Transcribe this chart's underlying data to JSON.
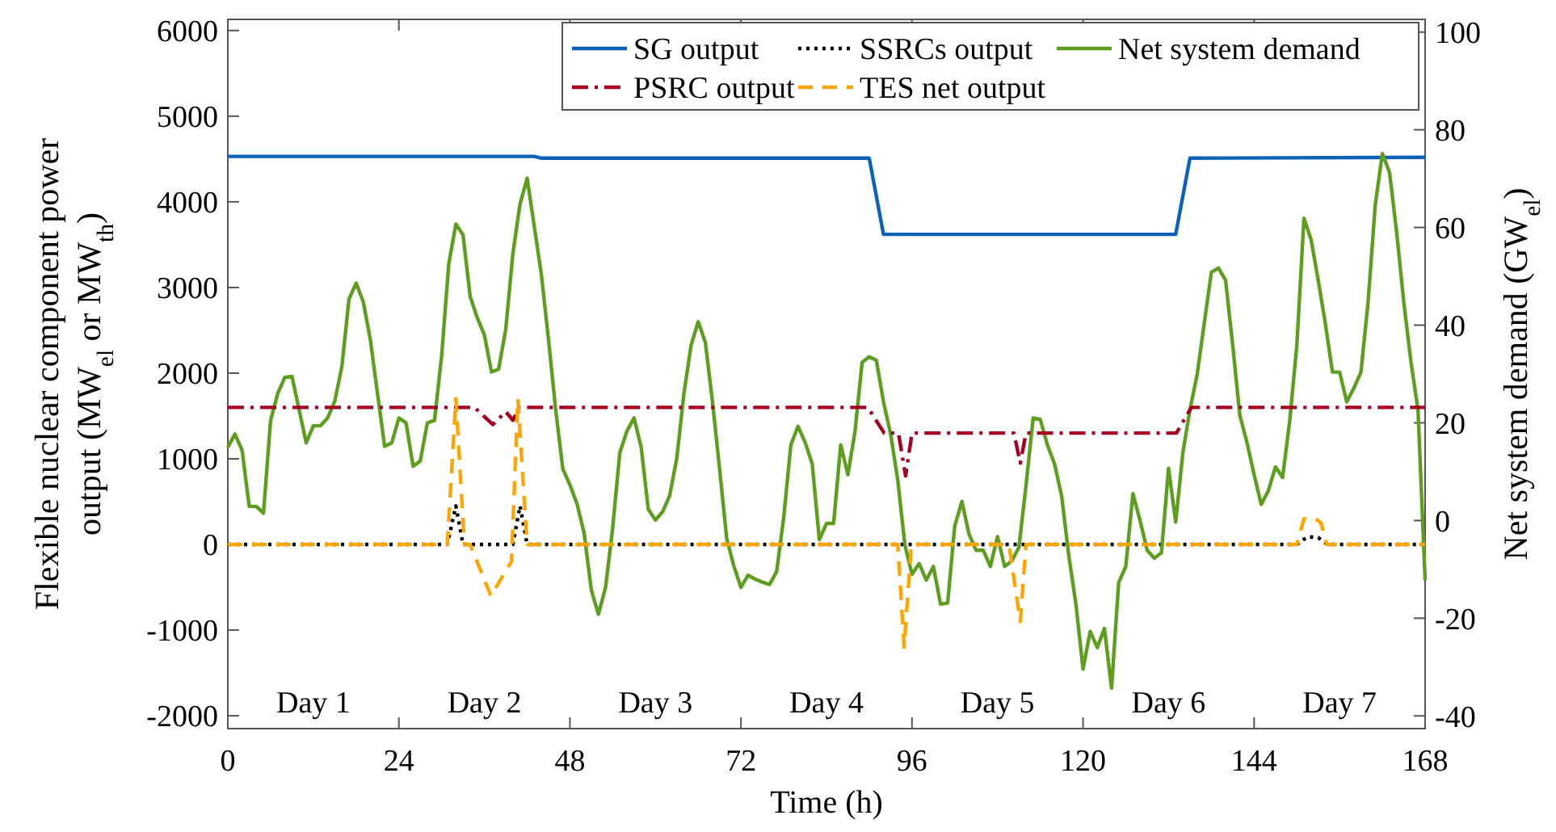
{
  "chart_data": {
    "type": "line",
    "xlabel": "Time (h)",
    "ylabel": "Flexible nuclear component power output (MW$_{el}$ or MW$_{th}$)",
    "y2label": "Net system demand (GW$_{el}$)",
    "xlim": [
      0,
      168
    ],
    "xticks": [
      0,
      24,
      48,
      72,
      96,
      120,
      144,
      168
    ],
    "ylim": [
      -2150,
      6130
    ],
    "yticks": [
      -2000,
      -1000,
      0,
      1000,
      2000,
      3000,
      4000,
      5000,
      6000
    ],
    "y2lim": [
      -42.6,
      102.6
    ],
    "y2ticks": [
      -40,
      -20,
      0,
      20,
      40,
      60,
      80,
      100
    ],
    "legend": "top right",
    "grid": false,
    "annotations": [
      "Day 1",
      "Day 2",
      "Day 3",
      "Day 4",
      "Day 5",
      "Day 6",
      "Day 7"
    ],
    "series": [
      {
        "name": "SG output",
        "color": "#0b62b8",
        "line_style": "solid",
        "x": [
          0,
          43,
          44,
          90,
          92,
          133,
          135,
          168
        ],
        "values": [
          4530,
          4530,
          4510,
          4510,
          3620,
          3620,
          4510,
          4520
        ]
      },
      {
        "name": "SSRCs output",
        "color": "#000000",
        "line_style": "dotted",
        "x": [
          0,
          30.8,
          32,
          33,
          40,
          41,
          42,
          150,
          151.5,
          153,
          154.3,
          168
        ],
        "values": [
          0,
          0,
          450,
          0,
          0,
          450,
          0,
          0,
          90,
          80,
          0,
          0
        ]
      },
      {
        "name": "Net system demand",
        "color": "#5d9e1e",
        "line_style": "solid",
        "axis": "y2",
        "x": [
          0,
          1,
          2,
          3,
          4,
          5,
          6,
          7,
          8,
          9,
          10,
          11,
          12,
          13,
          14,
          15,
          16,
          17,
          18,
          19,
          20,
          21,
          22,
          23,
          24,
          25,
          26,
          27,
          28,
          29,
          30,
          31,
          32,
          33,
          34,
          35,
          36,
          37,
          38,
          39,
          40,
          41,
          42,
          43,
          44,
          45,
          46,
          47,
          48,
          49,
          50,
          51,
          52,
          53,
          54,
          55,
          56,
          57,
          58,
          59,
          60,
          61,
          62,
          63,
          64,
          65,
          66,
          67,
          68,
          69,
          70,
          71,
          72,
          73,
          74,
          75,
          76,
          77,
          78,
          79,
          80,
          81,
          82,
          83,
          84,
          85,
          86,
          87,
          88,
          89,
          90,
          91,
          92,
          93,
          94,
          95,
          96,
          97,
          98,
          99,
          100,
          101,
          102,
          103,
          104,
          105,
          106,
          107,
          108,
          109,
          110,
          111,
          112,
          113,
          114,
          115,
          116,
          117,
          118,
          119,
          120,
          121,
          122,
          123,
          124,
          125,
          126,
          127,
          128,
          129,
          130,
          131,
          132,
          133,
          134,
          135,
          136,
          137,
          138,
          139,
          140,
          141,
          142,
          143,
          144,
          145,
          146,
          147,
          148,
          149,
          150,
          151,
          152,
          153,
          154,
          155,
          156,
          157,
          158,
          159,
          160,
          161,
          162,
          163,
          164,
          165,
          166,
          167,
          168
        ],
        "values": [
          15,
          17.7,
          14.4,
          2.9,
          2.9,
          1.5,
          20.5,
          26,
          29.3,
          29.5,
          22.7,
          15.9,
          19.4,
          19.4,
          21,
          24.4,
          31.5,
          45.3,
          48.6,
          44.8,
          37,
          26,
          15.2,
          15.9,
          21,
          20,
          11.1,
          12.2,
          20,
          20.5,
          33.7,
          52.5,
          60.7,
          58.5,
          45.9,
          41.5,
          38,
          30.4,
          31,
          39.2,
          54.7,
          64.8,
          70.1,
          60.2,
          50.3,
          37,
          22.7,
          10.6,
          7.3,
          3.4,
          -2.6,
          -14.2,
          -19.2,
          -13.7,
          -1.5,
          13.9,
          18.3,
          21,
          15,
          2.3,
          0.1,
          1.8,
          5.1,
          12.8,
          26,
          35.9,
          40.7,
          36.5,
          24.4,
          10.6,
          -3.7,
          -9.3,
          -13.7,
          -11.2,
          -12,
          -12.6,
          -13.1,
          -10.5,
          0.6,
          15.5,
          19.3,
          16,
          11.6,
          -3.9,
          -0.6,
          -0.6,
          15.5,
          9.4,
          18.2,
          32.4,
          33.5,
          32.8,
          24.3,
          17.7,
          8.3,
          -5,
          -11,
          -8.8,
          -12.2,
          -9.4,
          -17.1,
          -16.9,
          -1.1,
          3.9,
          -2.8,
          -6.1,
          -6.1,
          -9.4,
          -3.3,
          -9.4,
          -8.3,
          -5.5,
          7.2,
          21,
          20.7,
          15.5,
          11.6,
          5,
          -7.2,
          -17.1,
          -30.4,
          -22.7,
          -26,
          -22.1,
          -34.3,
          -12.7,
          -9.4,
          5.5,
          0,
          -6.1,
          -7.7,
          -6.6,
          10.7,
          -0.3,
          13.8,
          22.7,
          29.8,
          40.3,
          50.8,
          51.7,
          49.2,
          35.9,
          21.5,
          16,
          9.4,
          3.3,
          6.1,
          11,
          8.8,
          20.4,
          35.9,
          61.9,
          57.5,
          49.2,
          40.3,
          30.4,
          30.4,
          24.3,
          27.1,
          30.4,
          44.8,
          64.6,
          75.1,
          71.3,
          59.1,
          44.8,
          32.6,
          22.7,
          -12.2
        ]
      },
      {
        "name": "PSRC output",
        "color": "#a50021",
        "line_style": "dashdot",
        "x": [
          0,
          34.6,
          37.2,
          39,
          40,
          40.9,
          89.8,
          92.1,
          94.1,
          95.1,
          96,
          110.3,
          111.2,
          112,
          133.1,
          135.2,
          168
        ],
        "values": [
          1600,
          1600,
          1400,
          1550,
          1450,
          1600,
          1600,
          1300,
          1300,
          800,
          1300,
          1300,
          950,
          1300,
          1300,
          1600,
          1600
        ]
      },
      {
        "name": "TES net output",
        "color": "#ffa500",
        "line_style": "dashed",
        "x": [
          0,
          30.8,
          32,
          33.2,
          34,
          36.9,
          38.7,
          39.8,
          40.7,
          42,
          94,
          94.9,
          95.9,
          109.6,
          111.2,
          112,
          150,
          151,
          152.6,
          153.4,
          154.2,
          168
        ],
        "values": [
          0,
          0,
          1700,
          0,
          0,
          -600,
          -350,
          -200,
          1700,
          0,
          0,
          -1200,
          0,
          0,
          -900,
          0,
          0,
          300,
          300,
          250,
          0,
          0
        ]
      }
    ]
  }
}
